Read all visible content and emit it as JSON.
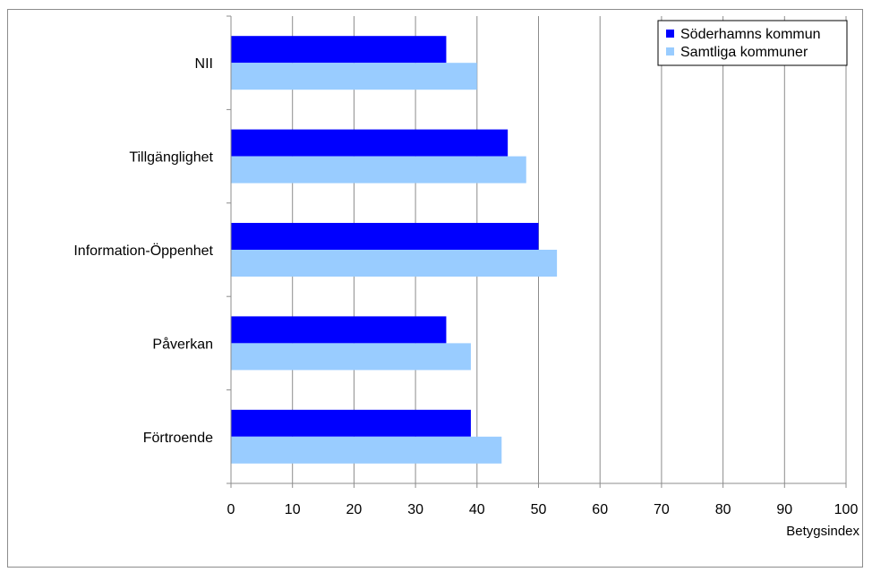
{
  "chart_data": {
    "type": "bar",
    "orientation": "horizontal",
    "categories": [
      "NII",
      "Tillgänglighet",
      "Information-Öppenhet",
      "Påverkan",
      "Förtroende"
    ],
    "series": [
      {
        "name": "Söderhamns kommun",
        "color": "#0000ff",
        "values": [
          35,
          45,
          50,
          35,
          39
        ]
      },
      {
        "name": "Samtliga kommuner",
        "color": "#99ccff",
        "values": [
          40,
          48,
          53,
          39,
          44
        ]
      }
    ],
    "xlabel": "Betygsindex",
    "ylabel": "",
    "xlim": [
      0,
      100
    ],
    "xticks": [
      0,
      10,
      20,
      30,
      40,
      50,
      60,
      70,
      80,
      90,
      100
    ],
    "grid": true,
    "legend": "top-right"
  }
}
